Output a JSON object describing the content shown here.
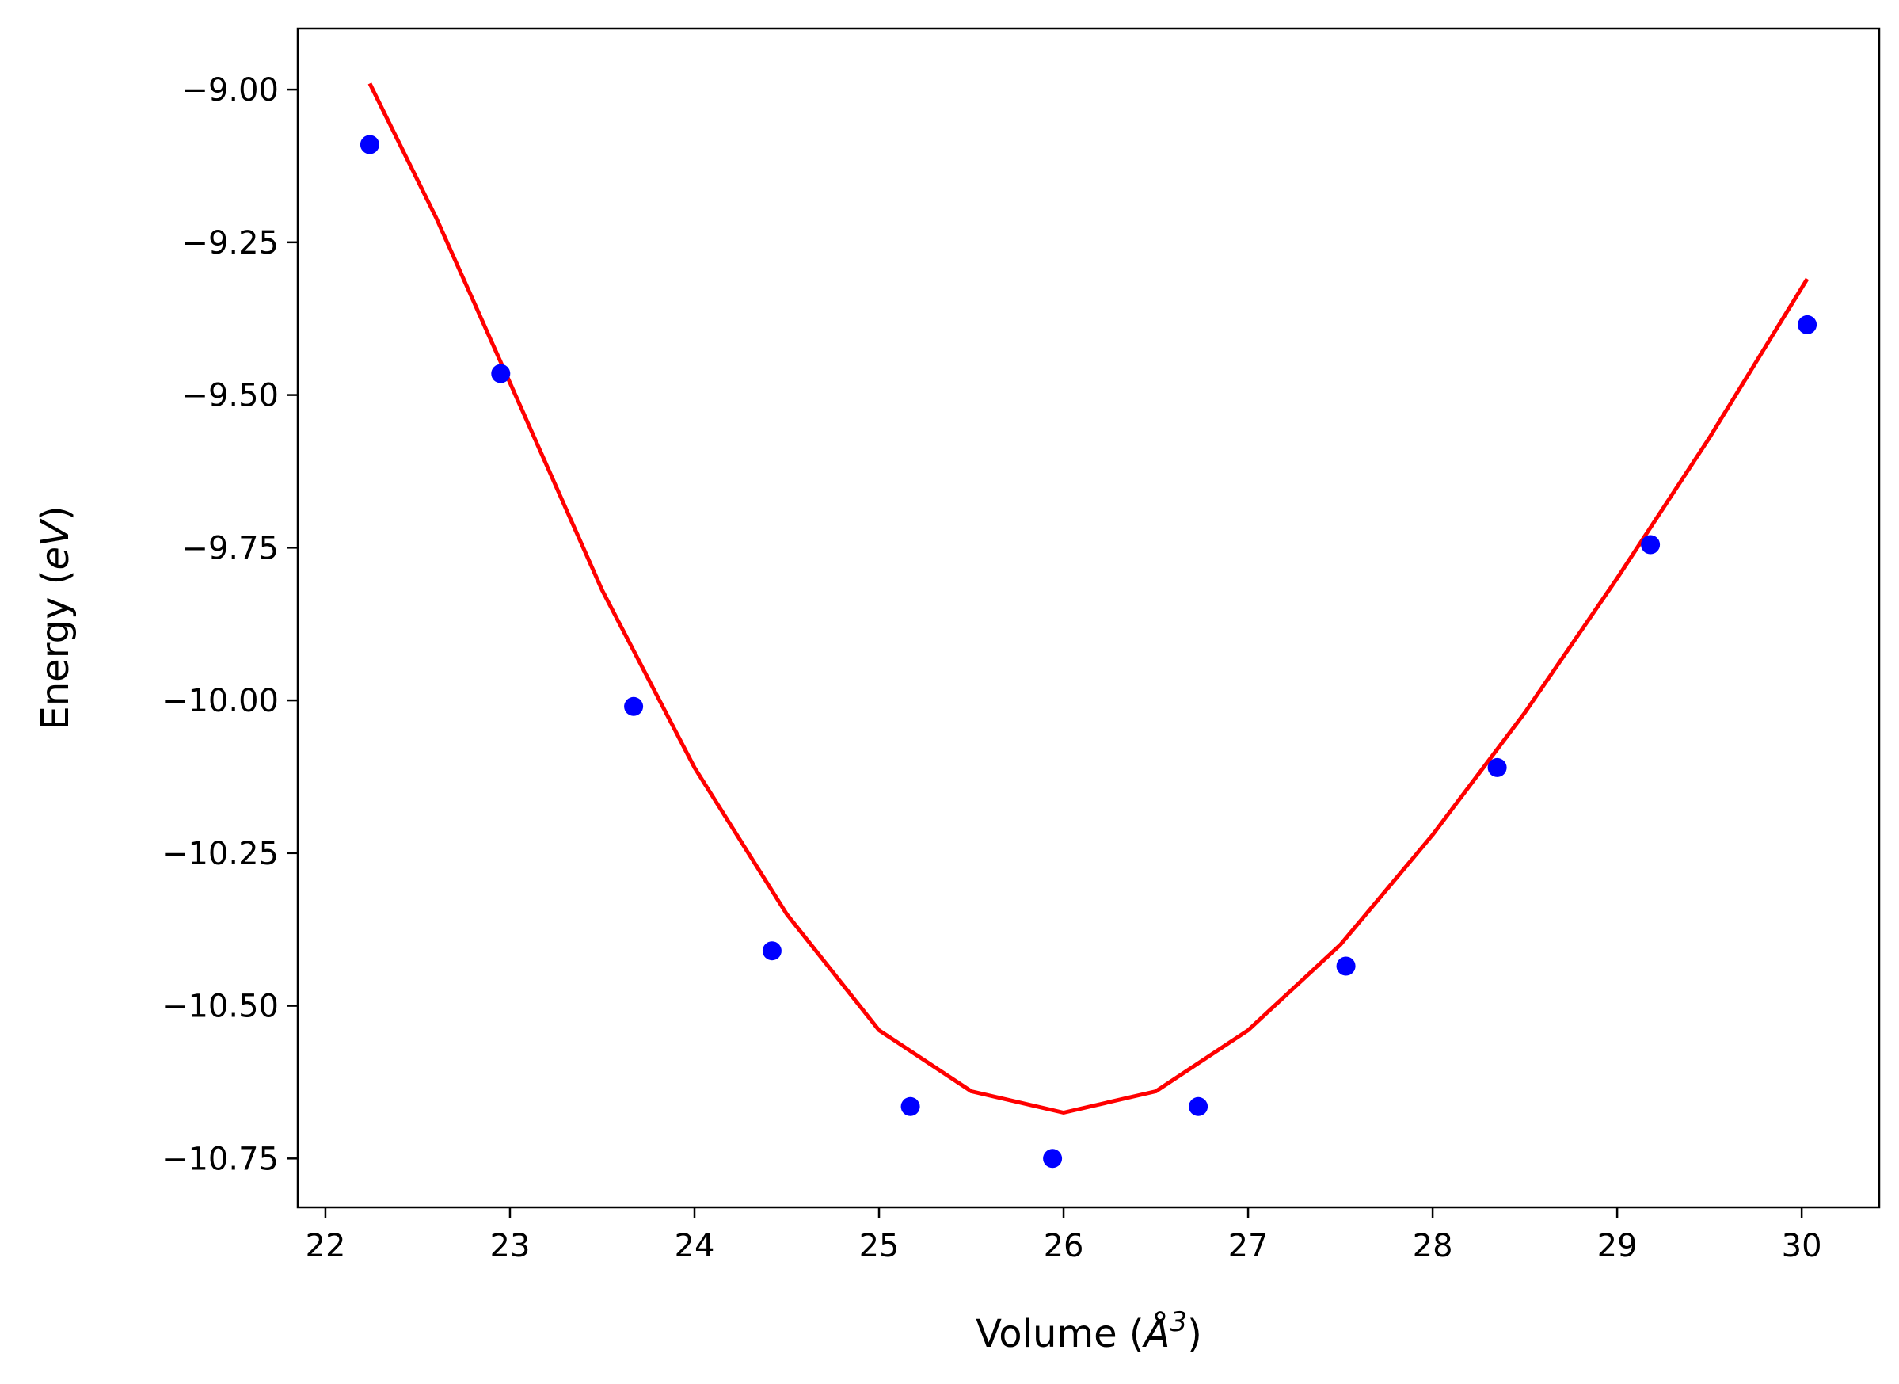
{
  "chart_data": {
    "type": "scatter",
    "title": "",
    "xlabel": "Volume (",
    "xlabel_symbol": "Å",
    "xlabel_sup": "3",
    "xlabel_close": ")",
    "ylabel": "Energy (",
    "ylabel_unit": "eV",
    "ylabel_close": ")",
    "xlim": [
      21.85,
      30.42
    ],
    "ylim": [
      -10.83,
      -8.9
    ],
    "x_ticks": [
      {
        "value": 22,
        "label": "22"
      },
      {
        "value": 23,
        "label": "23"
      },
      {
        "value": 24,
        "label": "24"
      },
      {
        "value": 25,
        "label": "25"
      },
      {
        "value": 26,
        "label": "26"
      },
      {
        "value": 27,
        "label": "27"
      },
      {
        "value": 28,
        "label": "28"
      },
      {
        "value": 29,
        "label": "29"
      },
      {
        "value": 30,
        "label": "30"
      }
    ],
    "y_ticks": [
      {
        "value": -9.0,
        "label": "−9.00"
      },
      {
        "value": -9.25,
        "label": "−9.25"
      },
      {
        "value": -9.5,
        "label": "−9.50"
      },
      {
        "value": -9.75,
        "label": "−9.75"
      },
      {
        "value": -10.0,
        "label": "−10.00"
      },
      {
        "value": -10.25,
        "label": "−10.25"
      },
      {
        "value": -10.5,
        "label": "−10.50"
      },
      {
        "value": -10.75,
        "label": "−10.75"
      }
    ],
    "grid": false,
    "series": [
      {
        "kind": "scatter",
        "color": "#0000ff",
        "x": [
          22.24,
          22.95,
          23.67,
          24.42,
          25.17,
          25.94,
          26.73,
          27.53,
          28.35,
          29.18,
          30.03
        ],
        "y": [
          -9.09,
          -9.465,
          -10.01,
          -10.41,
          -10.665,
          -10.75,
          -10.665,
          -10.435,
          -10.11,
          -9.745,
          -9.385
        ]
      },
      {
        "kind": "line",
        "color": "#ff0000",
        "min_x": 26.02,
        "min_y": -10.675,
        "x_range": [
          22.24,
          30.03
        ],
        "x": [
          22.24,
          22.6,
          23.0,
          23.5,
          24.0,
          24.5,
          25.0,
          25.5,
          26.0,
          26.5,
          27.0,
          27.5,
          28.0,
          28.5,
          29.0,
          29.5,
          30.03
        ],
        "y": [
          -8.99,
          -9.21,
          -9.48,
          -9.82,
          -10.11,
          -10.35,
          -10.54,
          -10.64,
          -10.675,
          -10.64,
          -10.54,
          -10.4,
          -10.22,
          -10.02,
          -9.8,
          -9.57,
          -9.31
        ]
      }
    ]
  }
}
